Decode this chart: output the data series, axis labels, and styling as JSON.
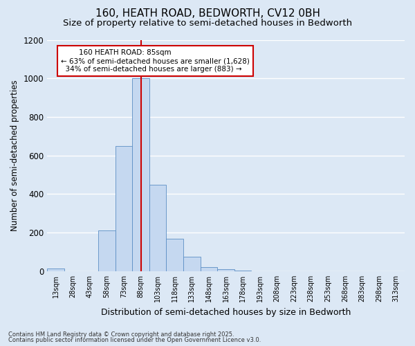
{
  "title1": "160, HEATH ROAD, BEDWORTH, CV12 0BH",
  "title2": "Size of property relative to semi-detached houses in Bedworth",
  "xlabel": "Distribution of semi-detached houses by size in Bedworth",
  "ylabel": "Number of semi-detached properties",
  "footnote1": "Contains HM Land Registry data © Crown copyright and database right 2025.",
  "footnote2": "Contains public sector information licensed under the Open Government Licence v3.0.",
  "bar_labels": [
    "13sqm",
    "28sqm",
    "43sqm",
    "58sqm",
    "73sqm",
    "88sqm",
    "103sqm",
    "118sqm",
    "133sqm",
    "148sqm",
    "163sqm",
    "178sqm",
    "193sqm",
    "208sqm",
    "223sqm",
    "238sqm",
    "253sqm",
    "268sqm",
    "283sqm",
    "298sqm",
    "313sqm"
  ],
  "bar_values": [
    15,
    0,
    0,
    210,
    650,
    1000,
    450,
    170,
    75,
    20,
    12,
    5,
    0,
    0,
    0,
    0,
    0,
    0,
    0,
    0,
    0
  ],
  "bar_color": "#c5d8f0",
  "bar_edge_color": "#5b8ec4",
  "property_line_index": 5,
  "property_label": "160 HEATH ROAD: 85sqm",
  "smaller_pct": 63,
  "smaller_count": 1628,
  "larger_pct": 34,
  "larger_count": 883,
  "ylim": [
    0,
    1200
  ],
  "bg_color": "#dce8f5",
  "grid_color": "#ffffff",
  "annotation_box_color": "#ffffff",
  "annotation_box_edge": "#cc0000",
  "vline_color": "#cc0000",
  "title1_fontsize": 11,
  "title2_fontsize": 9.5,
  "bar_width": 1.0
}
